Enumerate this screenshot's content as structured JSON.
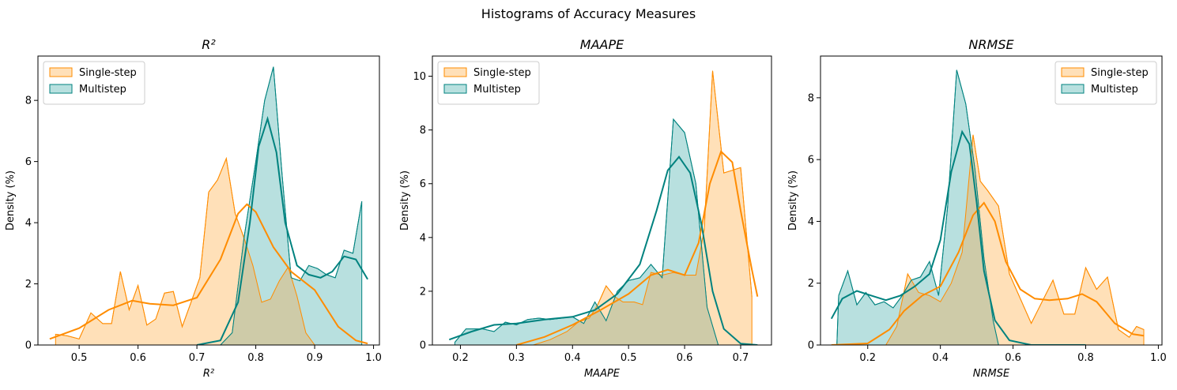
{
  "figure": {
    "suptitle": "Histograms of Accuracy Measures",
    "colors": {
      "single": "#ff8c00",
      "single_fill": "#ffe0b8",
      "multi": "#00827f",
      "multi_fill": "#b8e0df",
      "overlap": "#cecba8",
      "overlap_edge": "#4a7d4a"
    }
  },
  "chart_data": [
    {
      "type": "area",
      "title": "R²",
      "xlabel": "R²",
      "ylabel": "Density (%)",
      "xlim": [
        0.43,
        1.01
      ],
      "ylim": [
        0,
        9.45
      ],
      "xticks": [
        0.5,
        0.6,
        0.7,
        0.8,
        0.9,
        1.0
      ],
      "xtick_labels": [
        "0.5",
        "0.6",
        "0.7",
        "0.8",
        "0.9",
        "1.0"
      ],
      "yticks": [
        0,
        2,
        4,
        6,
        8
      ],
      "ytick_labels": [
        "0",
        "2",
        "4",
        "6",
        "8"
      ],
      "legend": {
        "position": "upper-left",
        "entries": [
          "Single-step",
          "Multistep"
        ]
      },
      "series": [
        {
          "name": "Single-step",
          "hist_x": [
            0.46,
            0.48,
            0.5,
            0.52,
            0.54,
            0.555,
            0.57,
            0.585,
            0.6,
            0.615,
            0.63,
            0.645,
            0.66,
            0.675,
            0.69,
            0.705,
            0.72,
            0.735,
            0.75,
            0.765,
            0.78,
            0.795,
            0.81,
            0.825,
            0.84,
            0.855,
            0.87,
            0.885,
            0.9,
            0.915,
            0.93,
            0.945
          ],
          "hist_y": [
            0.35,
            0.3,
            0.2,
            1.05,
            0.7,
            0.7,
            2.4,
            1.15,
            1.95,
            0.65,
            0.85,
            1.7,
            1.75,
            0.6,
            1.4,
            2.2,
            5.0,
            5.4,
            6.1,
            4.3,
            3.5,
            2.6,
            1.4,
            1.5,
            2.1,
            2.55,
            1.6,
            0.4,
            0.0,
            0.0,
            0.0,
            0.0
          ],
          "kde_x": [
            0.45,
            0.5,
            0.55,
            0.59,
            0.62,
            0.66,
            0.7,
            0.74,
            0.77,
            0.785,
            0.8,
            0.83,
            0.86,
            0.9,
            0.94,
            0.97,
            0.99
          ],
          "kde_y": [
            0.2,
            0.55,
            1.15,
            1.45,
            1.35,
            1.3,
            1.55,
            2.8,
            4.3,
            4.6,
            4.35,
            3.2,
            2.4,
            1.8,
            0.6,
            0.15,
            0.05
          ]
        },
        {
          "name": "Multistep",
          "hist_x": [
            0.46,
            0.74,
            0.76,
            0.78,
            0.8,
            0.815,
            0.83,
            0.845,
            0.86,
            0.875,
            0.89,
            0.905,
            0.92,
            0.935,
            0.95,
            0.965,
            0.98
          ],
          "hist_y": [
            0.0,
            0.0,
            0.4,
            3.5,
            6.0,
            8.0,
            9.1,
            5.5,
            2.2,
            2.1,
            2.6,
            2.5,
            2.3,
            2.2,
            3.1,
            3.0,
            4.7
          ],
          "kde_x": [
            0.7,
            0.74,
            0.77,
            0.79,
            0.805,
            0.82,
            0.835,
            0.85,
            0.87,
            0.89,
            0.91,
            0.93,
            0.95,
            0.97,
            0.99
          ],
          "kde_y": [
            0.0,
            0.15,
            1.4,
            4.0,
            6.5,
            7.4,
            6.3,
            4.0,
            2.6,
            2.3,
            2.2,
            2.4,
            2.9,
            2.8,
            2.15
          ]
        }
      ]
    },
    {
      "type": "area",
      "title": "MAAPE",
      "xlabel": "MAAPE",
      "ylabel": "Density (%)",
      "xlim": [
        0.15,
        0.755
      ],
      "ylim": [
        0,
        10.75
      ],
      "xticks": [
        0.2,
        0.3,
        0.4,
        0.5,
        0.6,
        0.7
      ],
      "xtick_labels": [
        "0.2",
        "0.3",
        "0.4",
        "0.5",
        "0.6",
        "0.7"
      ],
      "yticks": [
        0,
        2,
        4,
        6,
        8,
        10
      ],
      "ytick_labels": [
        "0",
        "2",
        "4",
        "6",
        "8",
        "10"
      ],
      "legend": {
        "position": "upper-left",
        "entries": [
          "Single-step",
          "Multistep"
        ]
      },
      "series": [
        {
          "name": "Single-step",
          "hist_x": [
            0.33,
            0.36,
            0.39,
            0.41,
            0.43,
            0.445,
            0.46,
            0.475,
            0.49,
            0.51,
            0.525,
            0.54,
            0.56,
            0.58,
            0.6,
            0.62,
            0.635,
            0.65,
            0.67,
            0.685,
            0.7,
            0.72
          ],
          "hist_y": [
            0.0,
            0.2,
            0.5,
            0.85,
            1.0,
            1.5,
            2.2,
            1.8,
            1.6,
            1.6,
            1.5,
            2.7,
            2.6,
            2.7,
            2.6,
            2.6,
            4.3,
            10.2,
            6.4,
            6.5,
            6.6,
            1.8
          ],
          "kde_x": [
            0.3,
            0.35,
            0.4,
            0.45,
            0.5,
            0.54,
            0.57,
            0.6,
            0.625,
            0.645,
            0.665,
            0.685,
            0.7,
            0.72,
            0.73
          ],
          "kde_y": [
            0.0,
            0.3,
            0.75,
            1.3,
            1.9,
            2.6,
            2.8,
            2.6,
            3.8,
            6.0,
            7.2,
            6.8,
            5.0,
            2.8,
            1.8
          ]
        },
        {
          "name": "Multistep",
          "hist_x": [
            0.19,
            0.21,
            0.24,
            0.26,
            0.28,
            0.3,
            0.32,
            0.34,
            0.36,
            0.38,
            0.4,
            0.42,
            0.44,
            0.46,
            0.48,
            0.5,
            0.52,
            0.54,
            0.56,
            0.58,
            0.6,
            0.62,
            0.64,
            0.66
          ],
          "hist_y": [
            0.1,
            0.6,
            0.6,
            0.5,
            0.85,
            0.75,
            0.95,
            1.0,
            0.95,
            1.0,
            1.05,
            0.8,
            1.6,
            0.9,
            2.0,
            2.4,
            2.5,
            3.0,
            2.5,
            8.4,
            7.9,
            6.0,
            1.4,
            0.0
          ],
          "kde_x": [
            0.18,
            0.22,
            0.26,
            0.3,
            0.35,
            0.4,
            0.44,
            0.48,
            0.52,
            0.55,
            0.57,
            0.59,
            0.61,
            0.63,
            0.65,
            0.67,
            0.7,
            0.73
          ],
          "kde_y": [
            0.2,
            0.5,
            0.75,
            0.8,
            0.95,
            1.05,
            1.3,
            1.9,
            3.0,
            5.0,
            6.5,
            7.0,
            6.4,
            4.5,
            2.0,
            0.6,
            0.05,
            0.0
          ]
        }
      ]
    },
    {
      "type": "area",
      "title": "NRMSE",
      "xlabel": "NRMSE",
      "ylabel": "Density (%)",
      "xlim": [
        0.07,
        1.01
      ],
      "ylim": [
        0,
        9.35
      ],
      "xticks": [
        0.2,
        0.4,
        0.6,
        0.8,
        1.0
      ],
      "xtick_labels": [
        "0.2",
        "0.4",
        "0.6",
        "0.8",
        "1.0"
      ],
      "yticks": [
        0,
        2,
        4,
        6,
        8
      ],
      "ytick_labels": [
        "0",
        "2",
        "4",
        "6",
        "8"
      ],
      "legend": {
        "position": "upper-right",
        "entries": [
          "Single-step",
          "Multistep"
        ]
      },
      "series": [
        {
          "name": "Single-step",
          "hist_x": [
            0.25,
            0.28,
            0.31,
            0.34,
            0.37,
            0.4,
            0.43,
            0.46,
            0.49,
            0.51,
            0.53,
            0.56,
            0.59,
            0.62,
            0.65,
            0.68,
            0.71,
            0.74,
            0.77,
            0.8,
            0.83,
            0.86,
            0.89,
            0.92,
            0.94,
            0.96
          ],
          "hist_y": [
            0.0,
            0.6,
            2.3,
            1.7,
            1.6,
            1.4,
            2.0,
            3.0,
            6.8,
            5.3,
            5.0,
            4.5,
            2.3,
            1.5,
            0.7,
            1.4,
            2.1,
            1.0,
            1.0,
            2.5,
            1.8,
            2.2,
            0.5,
            0.25,
            0.6,
            0.5
          ],
          "kde_x": [
            0.1,
            0.2,
            0.26,
            0.3,
            0.35,
            0.4,
            0.45,
            0.49,
            0.52,
            0.55,
            0.58,
            0.62,
            0.66,
            0.7,
            0.75,
            0.79,
            0.83,
            0.88,
            0.93,
            0.96
          ],
          "kde_y": [
            0.0,
            0.05,
            0.5,
            1.1,
            1.6,
            1.9,
            3.0,
            4.2,
            4.6,
            4.0,
            2.7,
            1.8,
            1.5,
            1.45,
            1.5,
            1.65,
            1.4,
            0.7,
            0.35,
            0.3
          ]
        },
        {
          "name": "Multistep",
          "hist_x": [
            0.115,
            0.12,
            0.145,
            0.17,
            0.195,
            0.22,
            0.245,
            0.27,
            0.295,
            0.32,
            0.345,
            0.37,
            0.395,
            0.42,
            0.445,
            0.47,
            0.495,
            0.52,
            0.545,
            0.56,
            0.96
          ],
          "hist_y": [
            0.0,
            1.6,
            2.4,
            1.3,
            1.7,
            1.3,
            1.4,
            1.2,
            1.6,
            2.1,
            2.2,
            2.7,
            1.6,
            4.5,
            8.9,
            7.8,
            5.7,
            2.8,
            0.8,
            0.0,
            0.0
          ],
          "kde_x": [
            0.1,
            0.13,
            0.17,
            0.21,
            0.25,
            0.29,
            0.33,
            0.37,
            0.4,
            0.43,
            0.46,
            0.48,
            0.5,
            0.52,
            0.55,
            0.59,
            0.65,
            0.72,
            0.8
          ],
          "kde_y": [
            0.85,
            1.5,
            1.75,
            1.6,
            1.45,
            1.6,
            1.9,
            2.3,
            3.4,
            5.6,
            6.9,
            6.5,
            4.6,
            2.4,
            0.8,
            0.15,
            0.0,
            0.0,
            0.0
          ]
        }
      ]
    }
  ]
}
